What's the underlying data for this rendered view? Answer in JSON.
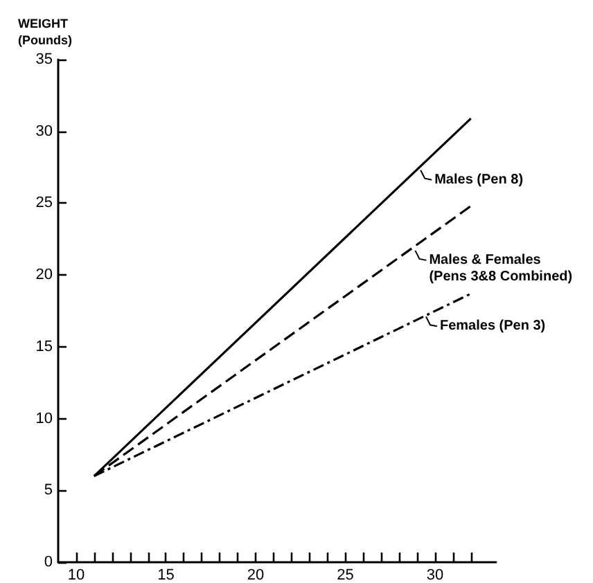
{
  "chart_data": {
    "type": "line",
    "ylabel": "WEIGHT\n(Pounds)",
    "x": [
      11,
      32
    ],
    "series": [
      {
        "color": "#000000",
        "values": [
          6,
          30.9
        ],
        "line_style": "solid"
      },
      {
        "color": "#000000",
        "values": [
          6,
          24.8
        ],
        "line_style": "dashed"
      },
      {
        "color": "#000000",
        "values": [
          6,
          18.7
        ],
        "line_style": "dotted"
      }
    ],
    "annotations": [
      {
        "text": "Males (Pen 8)",
        "x": 29.2,
        "y": 27.3
      },
      {
        "text": "Males & Females\n(Pens 3&8 Combined)",
        "x": 28.9,
        "y": 21.7
      },
      {
        "text": "Females (Pen 3)",
        "x": 29.5,
        "y": 17.1
      }
    ],
    "xlim": [
      9,
      33.4
    ],
    "ylim": [
      0,
      35
    ],
    "xticks": [
      {
        "value": 10,
        "label": "10"
      },
      {
        "value": 11,
        "label": null
      },
      {
        "value": 12,
        "label": null
      },
      {
        "value": 13,
        "label": null
      },
      {
        "value": 14,
        "label": null
      },
      {
        "value": 15,
        "label": "15"
      },
      {
        "value": 16,
        "label": null
      },
      {
        "value": 17,
        "label": null
      },
      {
        "value": 18,
        "label": null
      },
      {
        "value": 19,
        "label": null
      },
      {
        "value": 20,
        "label": "20"
      },
      {
        "value": 21,
        "label": null
      },
      {
        "value": 22,
        "label": null
      },
      {
        "value": 23,
        "label": null
      },
      {
        "value": 24,
        "label": null
      },
      {
        "value": 25,
        "label": "25"
      },
      {
        "value": 26,
        "label": null
      },
      {
        "value": 27,
        "label": null
      },
      {
        "value": 28,
        "label": null
      },
      {
        "value": 29,
        "label": null
      },
      {
        "value": 30,
        "label": "30"
      },
      {
        "value": 31,
        "label": null
      },
      {
        "value": 32,
        "label": null
      }
    ],
    "yticks": [
      0,
      5,
      10,
      15,
      20,
      25,
      30,
      35
    ],
    "grid": false,
    "marker": "none"
  }
}
